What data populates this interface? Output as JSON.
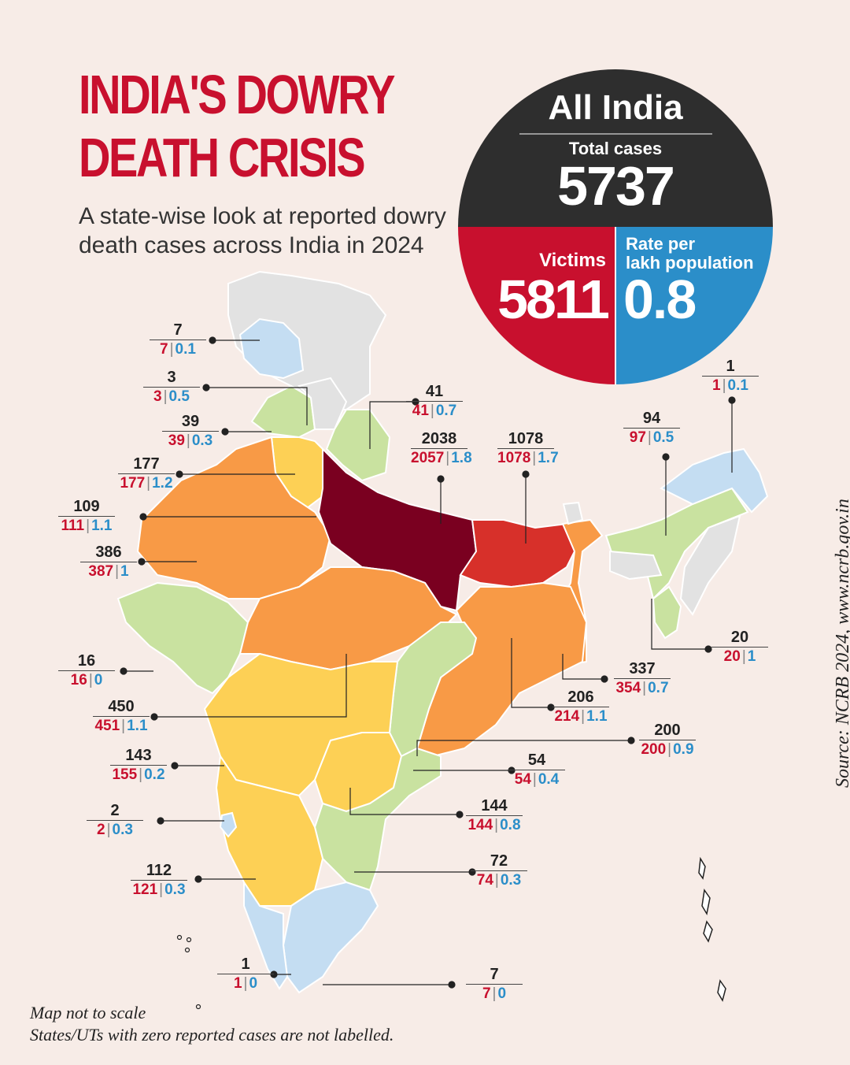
{
  "title_line1": "INDIA'S DOWRY",
  "title_line2": "DEATH CRISIS",
  "subtitle": "A state-wise look at reported dowry death cases across India in 2024",
  "all_india": {
    "heading": "All India",
    "total_label": "Total cases",
    "total_value": "5737",
    "victims_label": "Victims",
    "victims_value": "5811",
    "rate_label_line1": "Rate per",
    "rate_label_line2": "lakh population",
    "rate_value": "0.8"
  },
  "colors": {
    "title": "#c8102e",
    "dark": "#2e2e2e",
    "victims": "#c8102e",
    "rate": "#2b8ec9",
    "band_very_high": "#7a0020",
    "band_high": "#d7302a",
    "band_mid": "#f89a46",
    "band_low_mid": "#fdd055",
    "band_low": "#c9e2a0",
    "band_very_low": "#c4ddf2",
    "band_zero": "#e2e2e2"
  },
  "labels": [
    {
      "cases": "7",
      "victims": "7",
      "rate": "0.1"
    },
    {
      "cases": "3",
      "victims": "3",
      "rate": "0.5"
    },
    {
      "cases": "39",
      "victims": "39",
      "rate": "0.3"
    },
    {
      "cases": "177",
      "victims": "177",
      "rate": "1.2"
    },
    {
      "cases": "109",
      "victims": "111",
      "rate": "1.1"
    },
    {
      "cases": "386",
      "victims": "387",
      "rate": "1"
    },
    {
      "cases": "16",
      "victims": "16",
      "rate": "0"
    },
    {
      "cases": "450",
      "victims": "451",
      "rate": "1.1"
    },
    {
      "cases": "143",
      "victims": "155",
      "rate": "0.2"
    },
    {
      "cases": "2",
      "victims": "2",
      "rate": "0.3"
    },
    {
      "cases": "112",
      "victims": "121",
      "rate": "0.3"
    },
    {
      "cases": "1",
      "victims": "1",
      "rate": "0"
    },
    {
      "cases": "41",
      "victims": "41",
      "rate": "0.7"
    },
    {
      "cases": "2038",
      "victims": "2057",
      "rate": "1.8"
    },
    {
      "cases": "1078",
      "victims": "1078",
      "rate": "1.7"
    },
    {
      "cases": "1",
      "victims": "1",
      "rate": "0.1"
    },
    {
      "cases": "94",
      "victims": "97",
      "rate": "0.5"
    },
    {
      "cases": "20",
      "victims": "20",
      "rate": "1"
    },
    {
      "cases": "337",
      "victims": "354",
      "rate": "0.7"
    },
    {
      "cases": "206",
      "victims": "214",
      "rate": "1.1"
    },
    {
      "cases": "200",
      "victims": "200",
      "rate": "0.9"
    },
    {
      "cases": "54",
      "victims": "54",
      "rate": "0.4"
    },
    {
      "cases": "144",
      "victims": "144",
      "rate": "0.8"
    },
    {
      "cases": "72",
      "victims": "74",
      "rate": "0.3"
    },
    {
      "cases": "7",
      "victims": "7",
      "rate": "0"
    }
  ],
  "note_line1": "Map not to scale",
  "note_line2": "States/UTs with zero reported cases are not labelled.",
  "source": "Source: NCRB 2024, www.ncrb.gov.in"
}
